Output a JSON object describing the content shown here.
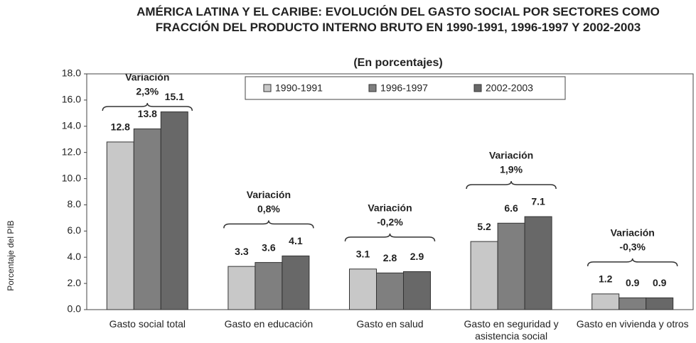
{
  "chart_data": {
    "type": "bar",
    "title": "AMÉRICA LATINA Y EL CARIBE: EVOLUCIÓN DEL GASTO SOCIAL POR SECTORES COMO FRACCIÓN DEL PRODUCTO INTERNO BRUTO EN 1990-1991, 1996-1997 Y 2002-2003",
    "subtitle": "(En porcentajes)",
    "y_label": "Porcentaje del PIB",
    "categories": [
      "Gasto social total",
      "Gasto en educación",
      "Gasto en salud",
      "Gasto en seguridad y asistencia social",
      "Gasto en vivienda y otros"
    ],
    "series": [
      {
        "name": "1990-1991",
        "color": "#c8c8c8",
        "values": [
          12.8,
          3.3,
          3.1,
          5.2,
          1.2
        ]
      },
      {
        "name": "1996-1997",
        "color": "#7f7f7f",
        "values": [
          13.8,
          3.6,
          2.8,
          6.6,
          0.9
        ]
      },
      {
        "name": "2002-2003",
        "color": "#686868",
        "values": [
          15.1,
          4.1,
          2.9,
          7.1,
          0.9
        ]
      }
    ],
    "annotations": [
      {
        "label": "Variación",
        "change": "2,3%"
      },
      {
        "label": "Variación",
        "change": "0,8%"
      },
      {
        "label": "Variación",
        "change": "-0,2%"
      },
      {
        "label": "Variación",
        "change": "1,9%"
      },
      {
        "label": "Variación",
        "change": "-0,3%"
      }
    ],
    "ylim": [
      0,
      18
    ],
    "yticks": [
      {
        "value": 0,
        "label": "0.0"
      },
      {
        "value": 2,
        "label": "2.0"
      },
      {
        "value": 4,
        "label": "4.0"
      },
      {
        "value": 6,
        "label": "6.0"
      },
      {
        "value": 8,
        "label": "8.0"
      },
      {
        "value": 10,
        "label": "10.0"
      },
      {
        "value": 12,
        "label": "12.0"
      },
      {
        "value": 14,
        "label": "14.0"
      },
      {
        "value": 16,
        "label": "16.0"
      },
      {
        "value": 18,
        "label": "18.0"
      }
    ],
    "grid": false,
    "legend": "top"
  }
}
